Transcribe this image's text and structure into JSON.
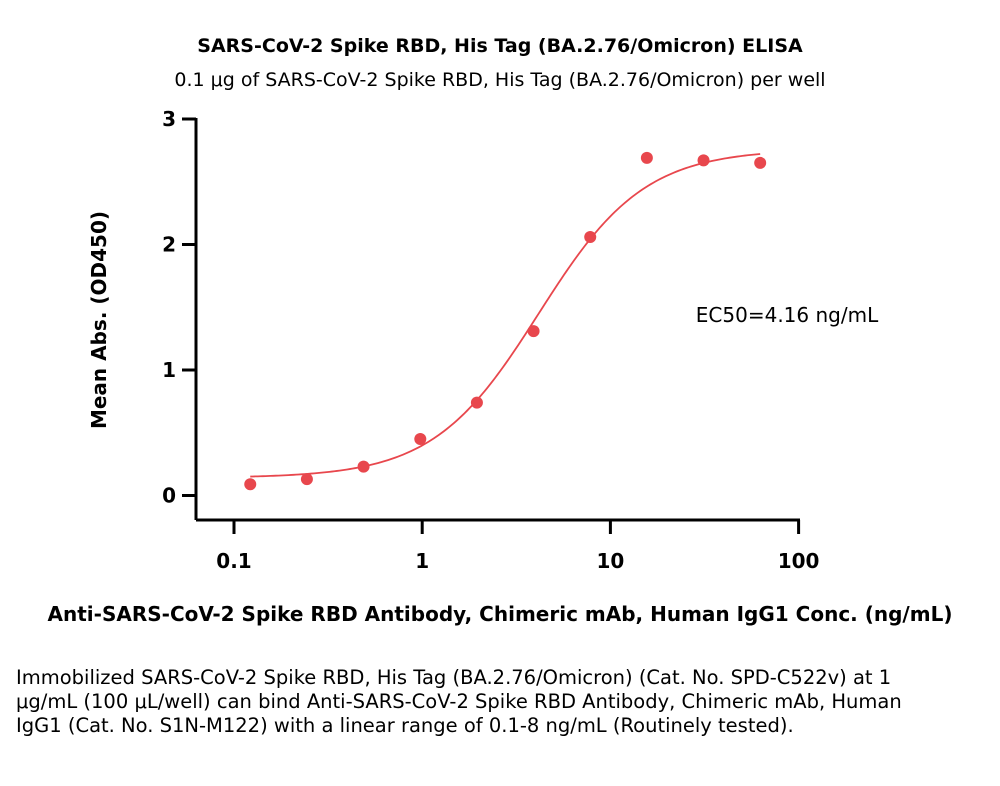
{
  "chart_data": {
    "type": "scatter",
    "title": "SARS-CoV-2 Spike RBD, His Tag (BA.2.76/Omicron) ELISA",
    "subtitle": "0.1 μg of SARS-CoV-2 Spike RBD, His Tag (BA.2.76/Omicron) per well",
    "xlabel": "Anti-SARS-CoV-2 Spike RBD Antibody, Chimeric mAb, Human IgG1 Conc. (ng/mL)",
    "ylabel": "Mean Abs. (OD450)",
    "x_scale": "log",
    "xlim": [
      0.07,
      100
    ],
    "ylim": [
      -0.2,
      3
    ],
    "x_ticks": [
      0.1,
      1,
      10,
      100
    ],
    "x_tick_labels": [
      "0.1",
      "1",
      "10",
      "100"
    ],
    "y_ticks": [
      0,
      1,
      2,
      3
    ],
    "y_tick_labels": [
      "0",
      "1",
      "2",
      "3"
    ],
    "grid": false,
    "series": [
      {
        "x": [
          0.122,
          0.244,
          0.488,
          0.977,
          1.953,
          3.906,
          7.813,
          15.625,
          31.25,
          62.5
        ],
        "y": [
          0.09,
          0.13,
          0.23,
          0.45,
          0.74,
          1.31,
          2.06,
          2.69,
          2.67,
          2.65
        ],
        "color": "#e8474d"
      }
    ],
    "fit": {
      "model": "4PL",
      "bottom": 0.14,
      "top": 2.76,
      "ec50": 4.16,
      "hill": 1.55,
      "color": "#e8474d"
    },
    "annotation": "EC50=4.16 ng/mL"
  },
  "caption": "Immobilized SARS-CoV-2 Spike RBD, His Tag (BA.2.76/Omicron) (Cat. No. SPD-C522v) at 1 μg/mL (100 μL/well) can bind Anti-SARS-CoV-2 Spike RBD Antibody, Chimeric mAb, Human IgG1 (Cat. No. S1N-M122) with a linear range of 0.1-8 ng/mL (Routinely tested)."
}
